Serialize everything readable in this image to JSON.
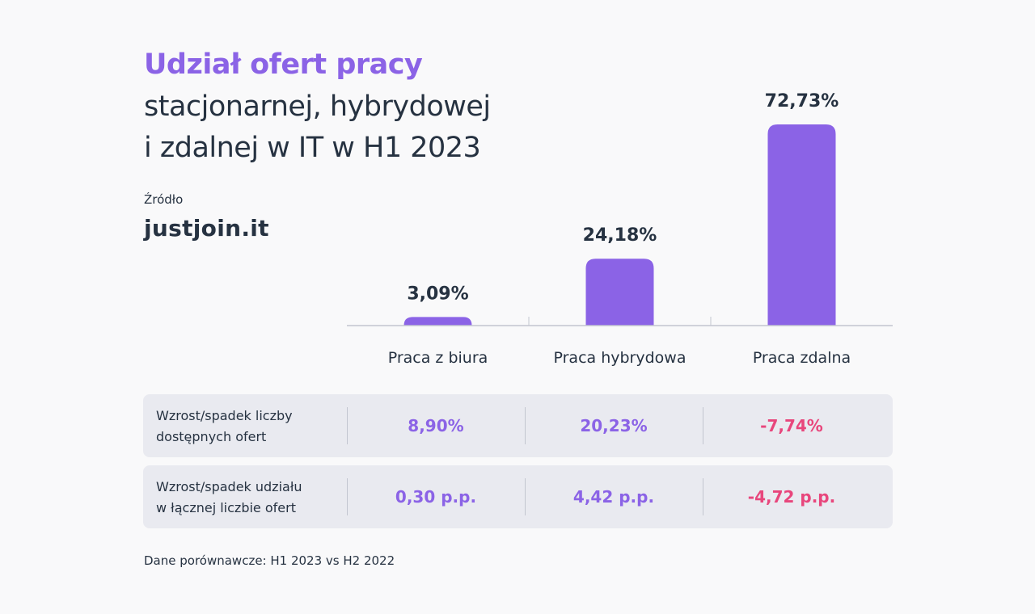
{
  "title": {
    "accent": "Udział ofert pracy",
    "line2": "stacjonarnej, hybrydowej",
    "line3": "i zdalnej w IT w H1 2023"
  },
  "source": {
    "label": "Źródło",
    "name": "justjoin.it"
  },
  "colors": {
    "bar": "#8b63e6",
    "positive": "#8b63e6",
    "negative": "#e8467c",
    "text": "#263241",
    "row_bg": "#e9eaf0"
  },
  "chart_data": {
    "type": "bar",
    "categories": [
      "Praca z biura",
      "Praca hybrydowa",
      "Praca zdalna"
    ],
    "values": [
      3.09,
      24.18,
      72.73
    ],
    "value_labels": [
      "3,09%",
      "24,18%",
      "72,73%"
    ],
    "unit": "%",
    "ylim": [
      0,
      72.73
    ],
    "grid": false
  },
  "table": {
    "rows": [
      {
        "label_lines": [
          "Wzrost/spadek liczby",
          "dostępnych ofert"
        ],
        "values": [
          "8,90%",
          "20,23%",
          "-7,74%"
        ],
        "negative": [
          false,
          false,
          true
        ]
      },
      {
        "label_lines": [
          "Wzrost/spadek udziału",
          "w łącznej liczbie ofert"
        ],
        "values": [
          "0,30 p.p.",
          "4,42 p.p.",
          "-4,72 p.p."
        ],
        "negative": [
          false,
          false,
          true
        ]
      }
    ]
  },
  "footnote": "Dane porównawcze: H1 2023 vs H2 2022"
}
